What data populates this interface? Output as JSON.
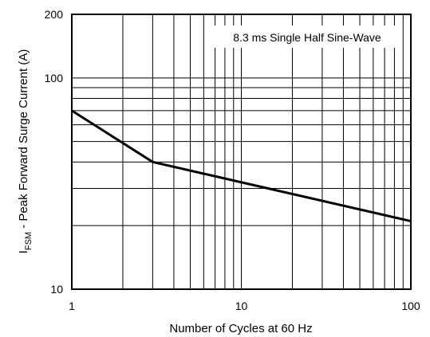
{
  "chart_data": {
    "type": "line",
    "title": "",
    "xlabel": "Number of Cycles at 60 Hz",
    "ylabel": {
      "main": "I",
      "subscript": "FSM",
      "rest": " - Peak Forward Surge Current (A)"
    },
    "x_scale": "log",
    "y_scale": "log",
    "xlim": [
      1,
      100
    ],
    "ylim": [
      10,
      200
    ],
    "grid": true,
    "x_ticks": [
      {
        "value": 1,
        "label": "1"
      },
      {
        "value": 10,
        "label": "10"
      },
      {
        "value": 100,
        "label": "100"
      }
    ],
    "y_ticks": [
      {
        "value": 10,
        "label": "10"
      },
      {
        "value": 100,
        "label": "100"
      },
      {
        "value": 200,
        "label": "200"
      }
    ],
    "annotation": "8.3 ms Single Half Sine-Wave",
    "series": [
      {
        "x": [
          1,
          3,
          100
        ],
        "y": [
          70,
          40,
          21
        ]
      }
    ]
  }
}
